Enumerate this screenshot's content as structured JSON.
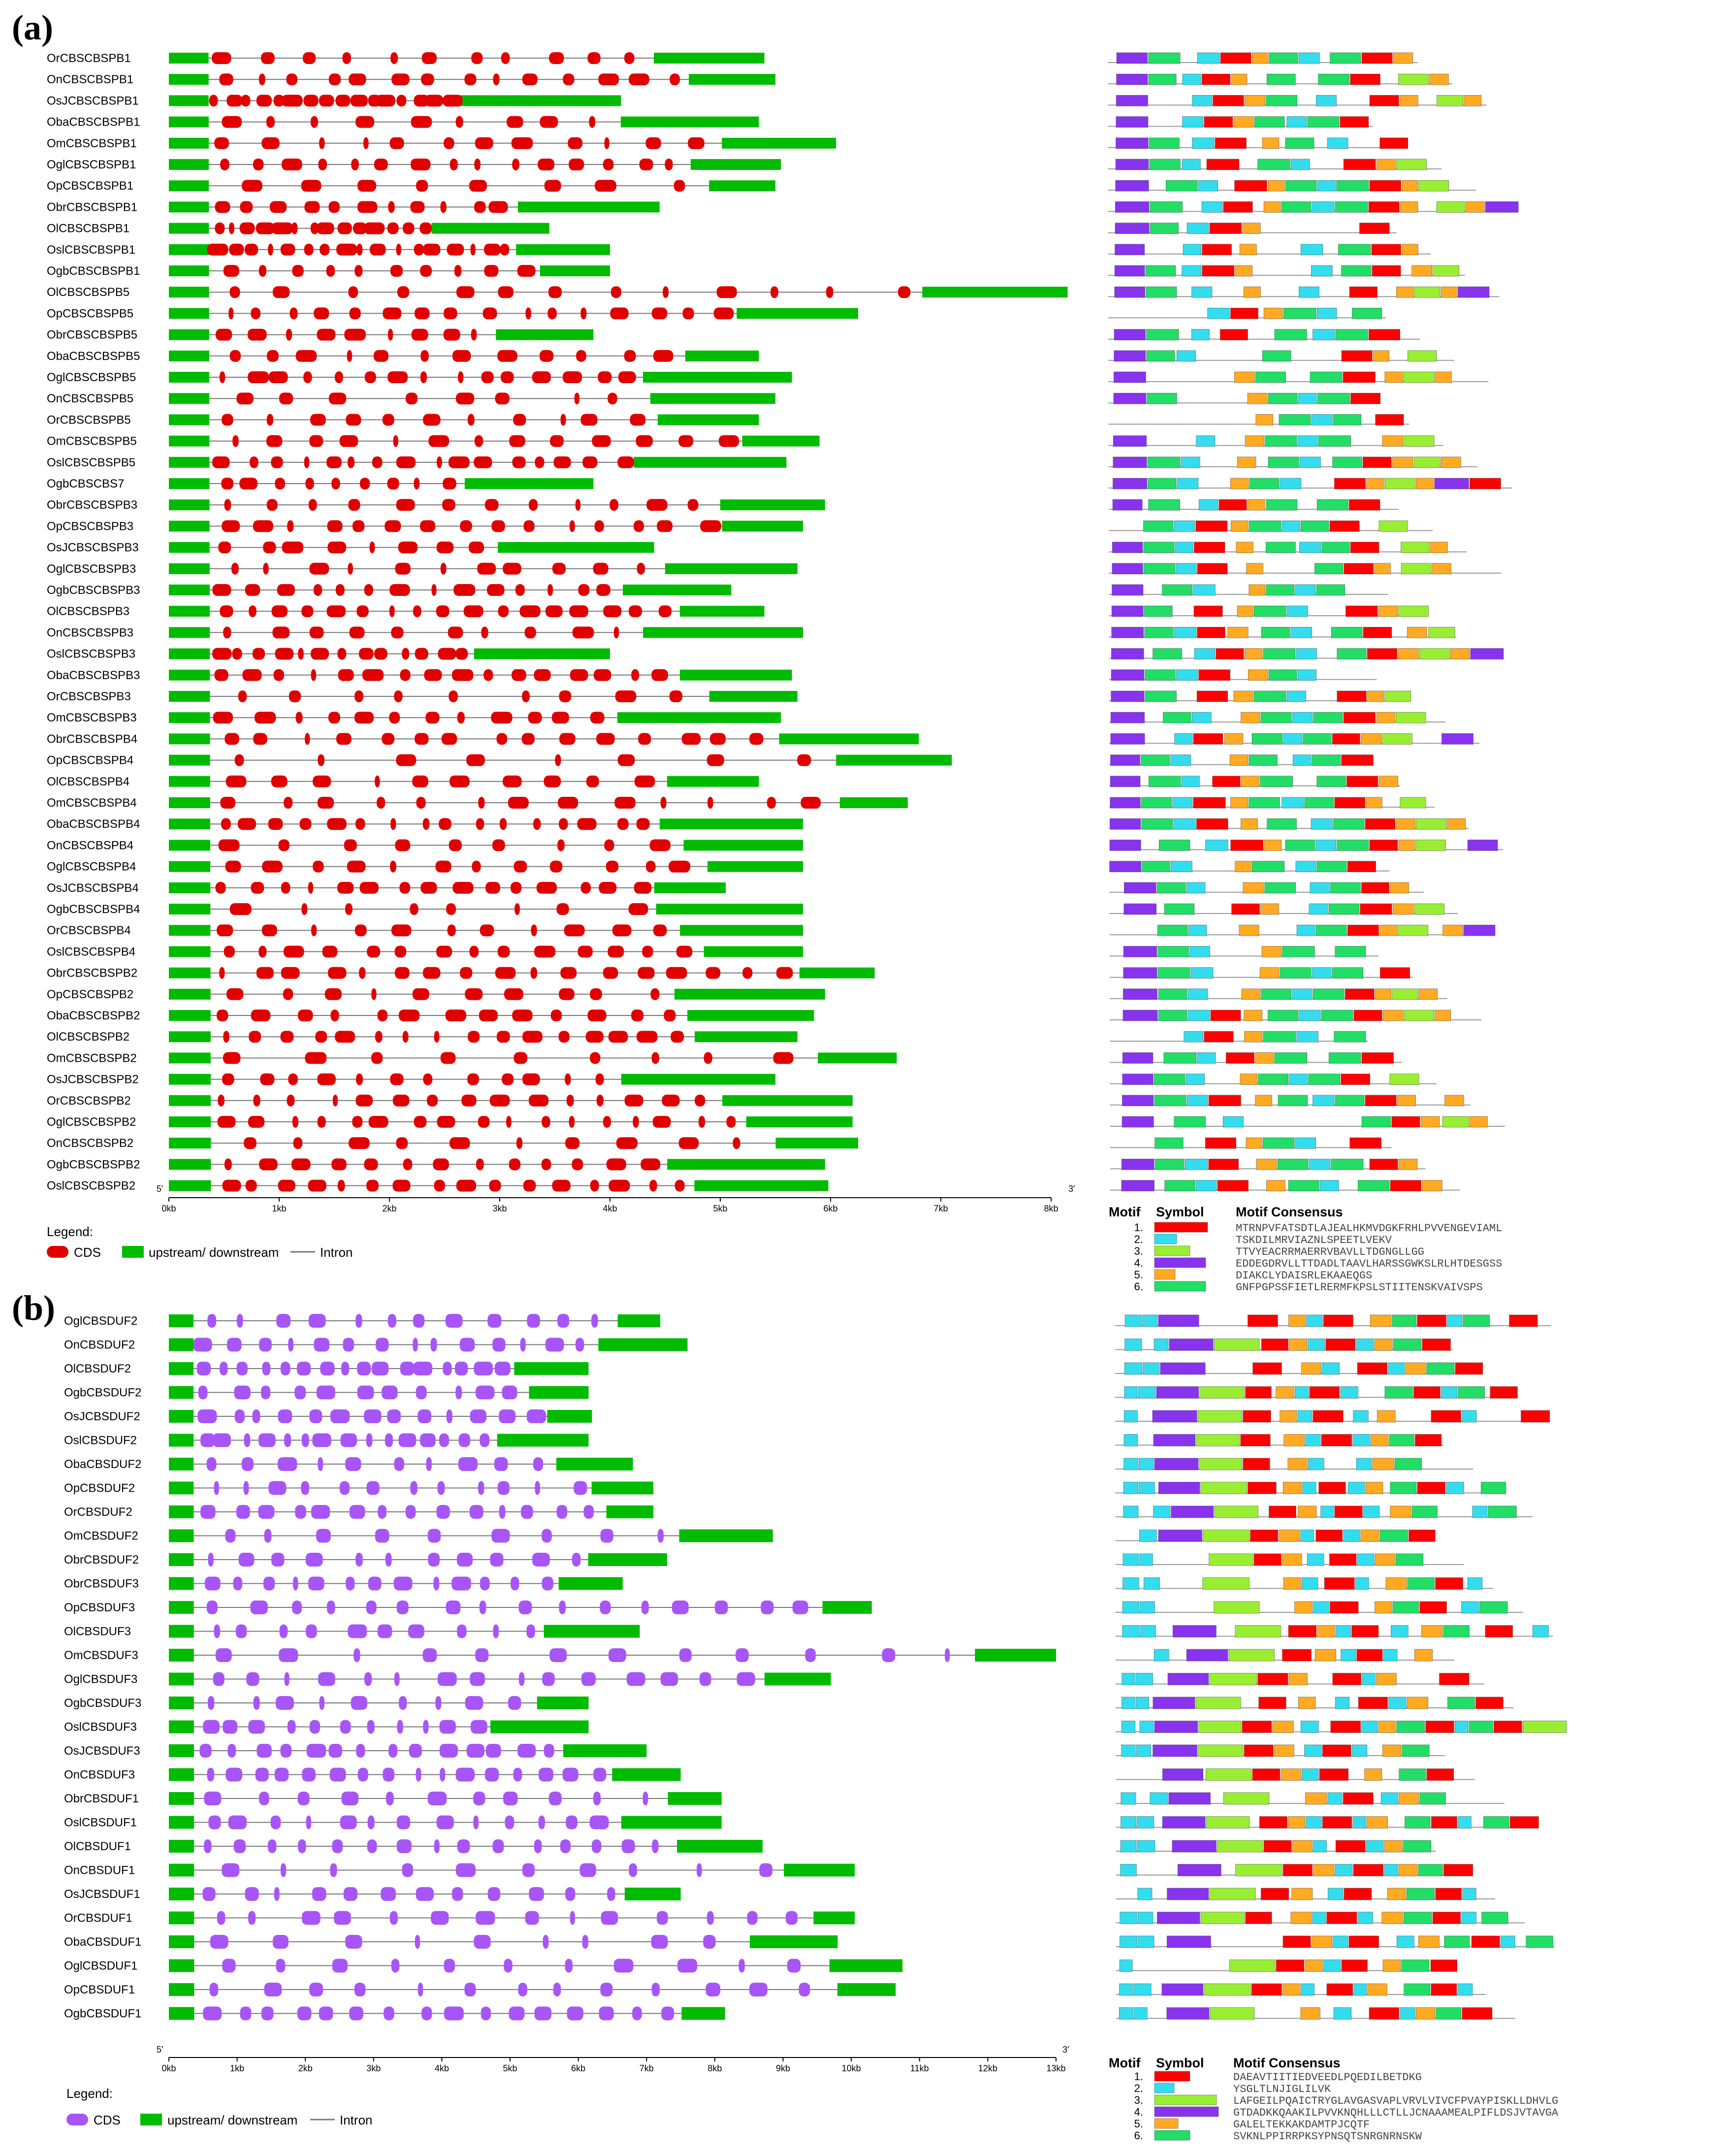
{
  "panel_a": {
    "label": "(a)",
    "genes": [
      "OrCBSCBSPB1",
      "OnCBSCBSPB1",
      "OsJCBSCBSPB1",
      "ObaCBSCBSPB1",
      "OmCBSCBSPB1",
      "OglCBSCBSPB1",
      "OpCBSCBSPB1",
      "ObrCBSCBSPB1",
      "OlCBSCBSPB1",
      "OslCBSCBSPB1",
      "OgbCBSCBSPB1",
      "OlCBSCBSPB5",
      "OpCBSCBSPB5",
      "ObrCBSCBSPB5",
      "ObaCBSCBSPB5",
      "OglCBSCBSPB5",
      "OnCBSCBSPB5",
      "OrCBSCBSPB5",
      "OmCBSCBSPB5",
      "OslCBSCBSPB5",
      "OgbCBSCBS7",
      "ObrCBSCBSPB3",
      "OpCBSCBSPB3",
      "OsJCBSCBSPB3",
      "OglCBSCBSPB3",
      "OgbCBSCBSPB3",
      "OlCBSCBSPB3",
      "OnCBSCBSPB3",
      "OslCBSCBSPB3",
      "ObaCBSCBSPB3",
      "OrCBSCBSPB3",
      "OmCBSCBSPB3",
      "ObrCBSCBSPB4",
      "OpCBSCBSPB4",
      "OlCBSCBSPB4",
      "OmCBSCBSPB4",
      "ObaCBSCBSPB4",
      "OnCBSCBSPB4",
      "OglCBSCBSPB4",
      "OsJCBSCBSPB4",
      "OgbCBSCBSPB4",
      "OrCBSCBSPB4",
      "OslCBSCBSPB4",
      "ObrCBSCBSPB2",
      "OpCBSCBSPB2",
      "ObaCBSCBSPB2",
      "OlCBSCBSPB2",
      "OmCBSCBSPB2",
      "OsJCBSCBSPB2",
      "OrCBSCBSPB2",
      "OglCBSCBSPB2",
      "OnCBSCBSPB2",
      "OgbCBSCBSPB2",
      "OslCBSCBSPB2"
    ],
    "gene_lengths_kb": [
      5.4,
      5.5,
      4.1,
      5.35,
      6.05,
      5.55,
      5.5,
      4.45,
      3.45,
      4.0,
      4.0,
      8.15,
      6.25,
      3.85,
      5.35,
      5.65,
      5.5,
      5.35,
      5.9,
      5.6,
      3.85,
      5.95,
      5.75,
      4.4,
      5.7,
      5.1,
      5.4,
      5.75,
      4.0,
      5.65,
      5.7,
      5.55,
      6.8,
      7.1,
      5.35,
      6.7,
      5.75,
      5.75,
      5.75,
      5.05,
      5.75,
      5.75,
      5.75,
      6.4,
      5.95,
      5.85,
      5.7,
      6.6,
      5.5,
      6.2,
      6.2,
      6.25,
      5.95,
      5.98
    ],
    "axis_ticks": [
      "0kb",
      "1kb",
      "2kb",
      "3kb",
      "4kb",
      "5kb",
      "6kb",
      "7kb",
      "8kb"
    ],
    "axis_max_kb": 8,
    "end5": "5'",
    "end3": "3'",
    "legend_title": "Legend:",
    "legend_items": [
      "CDS",
      "upstream/ downstream",
      "Intron"
    ],
    "cds_color": "#e00000",
    "motif_table": {
      "header_motif": "Motif",
      "header_symbol": "Symbol",
      "header_consensus": "Motif Consensus",
      "rows": [
        {
          "num": "1.",
          "color": "#ff0000",
          "consensus": "MTRNPVFATSDTLAJEALHKMVDGKFRHLPVVENGEVIAML"
        },
        {
          "num": "2.",
          "color": "#33ddee",
          "consensus": "TSKDILMRVIAZNLSPEETLVEKV"
        },
        {
          "num": "3.",
          "color": "#99ee33",
          "consensus": "TTVYEACRRMAERRVBAVLLTDGNGLLGG"
        },
        {
          "num": "4.",
          "color": "#8833ee",
          "consensus": "EDDEGDRVLLTTDADLTAAVLHARSSGWKSLRLHTDESGSS"
        },
        {
          "num": "5.",
          "color": "#ffaa22",
          "consensus": "DIAKCLYDAISRLEKAAEQGS"
        },
        {
          "num": "6.",
          "color": "#22dd66",
          "consensus": "GNFPGPSSFIETLRERMFKPSLSTIITENSKVAIVSPS"
        }
      ]
    }
  },
  "panel_b": {
    "label": "(b)",
    "genes": [
      "OglCBSDUF2",
      "OnCBSDUF2",
      "OlCBSDUF2",
      "OgbCBSDUF2",
      "OsJCBSDUF2",
      "OslCBSDUF2",
      "ObaCBSDUF2",
      "OpCBSDUF2",
      "OrCBSDUF2",
      "OmCBSDUF2",
      "ObrCBSDUF2",
      "ObrCBSDUF3",
      "OpCBSDUF3",
      "OlCBSDUF3",
      "OmCBSDUF3",
      "OglCBSDUF3",
      "OgbCBSDUF3",
      "OslCBSDUF3",
      "OsJCBSDUF3",
      "OnCBSDUF3",
      "ObrCBSDUF1",
      "OslCBSDUF1",
      "OlCBSDUF1",
      "OnCBSDUF1",
      "OsJCBSDUF1",
      "OrCBSDUF1",
      "ObaCBSDUF1",
      "OglCBSDUF1",
      "OpCBSDUF1",
      "OgbCBSDUF1"
    ],
    "gene_lengths_kb": [
      7.2,
      7.6,
      6.15,
      6.15,
      6.2,
      6.15,
      6.8,
      7.1,
      7.1,
      8.85,
      7.3,
      6.65,
      10.3,
      6.9,
      13.0,
      9.7,
      6.15,
      6.15,
      7.0,
      7.5,
      8.1,
      8.1,
      8.7,
      10.05,
      7.5,
      10.05,
      9.8,
      10.75,
      10.65,
      8.15
    ],
    "axis_ticks": [
      "0kb",
      "1kb",
      "2kb",
      "3kb",
      "4kb",
      "5kb",
      "6kb",
      "7kb",
      "8kb",
      "9kb",
      "10kb",
      "11kb",
      "12kb",
      "13kb"
    ],
    "axis_max_kb": 13,
    "end5": "5'",
    "end3": "3'",
    "legend_title": "Legend:",
    "legend_items": [
      "CDS",
      "upstream/ downstream",
      "Intron"
    ],
    "cds_color": "#a855f7",
    "motif_table": {
      "header_motif": "Motif",
      "header_symbol": "Symbol",
      "header_consensus": "Motif Consensus",
      "rows": [
        {
          "num": "1.",
          "color": "#ff0000",
          "consensus": "DAEAVTIITIEDVEEDLPQEDILBETDKG"
        },
        {
          "num": "2.",
          "color": "#33ddee",
          "consensus": "YSGLTLNJIGLILVK"
        },
        {
          "num": "3.",
          "color": "#99ee33",
          "consensus": "LAFGEILPQAICTRYGLAVGASVAPLVRVLVIVCFPVAYPISKLLDHVLG"
        },
        {
          "num": "4.",
          "color": "#8833ee",
          "consensus": "GTDADKKQAAKILPVVKNQHLLLCTLLJCNAAAMEALPIFLDSJVTAVGA"
        },
        {
          "num": "5.",
          "color": "#ffaa22",
          "consensus": "GALELTEKKAKDAMTPJCQTF"
        },
        {
          "num": "6.",
          "color": "#22dd66",
          "consensus": "SVKNLPPIRRPKSYPNSQTSNRGNRNSKW"
        }
      ]
    }
  },
  "colors": {
    "upstream_downstream": "#00bb00",
    "intron": "#777777"
  }
}
